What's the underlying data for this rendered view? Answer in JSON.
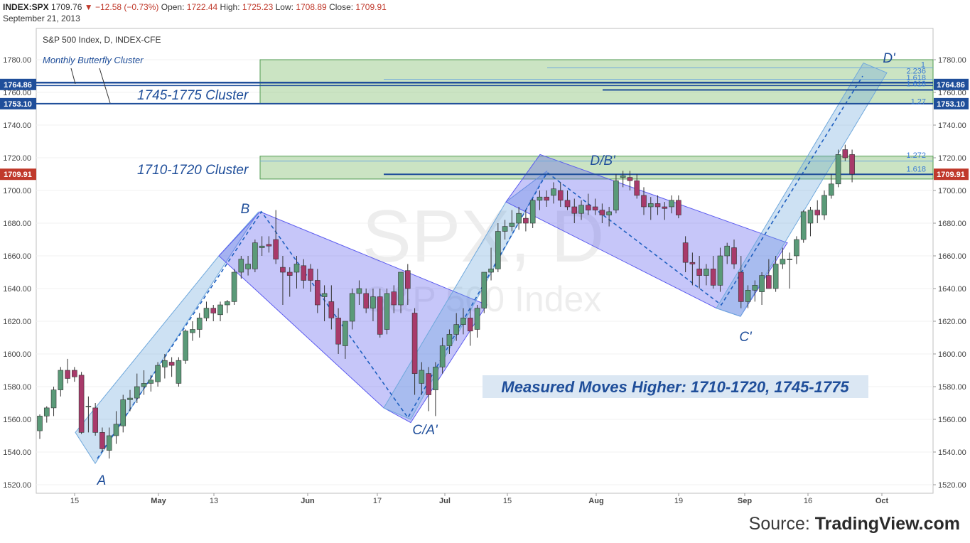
{
  "header": {
    "symbol": "INDEX:SPX",
    "last": "1709.76",
    "arrow": "▼",
    "change": "−12.58 (−0.73%)",
    "open_label": "Open:",
    "open": "1722.44",
    "high_label": "High:",
    "high": "1725.23",
    "low_label": "Low:",
    "low": "1708.89",
    "close_label": "Close:",
    "close": "1709.91",
    "date": "September 21, 2013"
  },
  "chart_title": "S&P 500 Index, D, INDEX-CFE",
  "watermark": {
    "line1": "SPX, D",
    "line2": "S&P 500 Index"
  },
  "source": {
    "prefix": "Source:",
    "name": "TradingView.com"
  },
  "colors": {
    "up": "#5a9a78",
    "down": "#c0392b",
    "down_body": "#a83a6a",
    "channel_up": "#6fa8dc",
    "channel_down": "#5b5bef",
    "cluster": "#8cc47a",
    "line": "#1f4e9a"
  },
  "chart_data": {
    "type": "candlestick",
    "title": "S&P 500 Index, D, INDEX-CFE",
    "ylim": [
      1515,
      1790
    ],
    "y_ticks": [
      "1520.00",
      "1540.00",
      "1560.00",
      "1580.00",
      "1600.00",
      "1620.00",
      "1640.00",
      "1660.00",
      "1680.00",
      "1700.00",
      "1720.00",
      "1740.00",
      "1760.00",
      "1780.00"
    ],
    "x_ticks": [
      "15",
      "May",
      "13",
      "Jun",
      "17",
      "Jul",
      "15",
      "Aug",
      "19",
      "Sep",
      "16",
      "Oct"
    ],
    "price_markers": [
      {
        "label": "1764.86",
        "value": 1764.86
      },
      {
        "label": "1753.10",
        "value": 1753.1
      },
      {
        "label": "1709.91",
        "value": 1709.91
      }
    ],
    "clusters": [
      {
        "label": "1745-1775 Cluster",
        "low": 1753,
        "high": 1780
      },
      {
        "label": "1710-1720 Cluster",
        "low": 1707,
        "high": 1721
      }
    ],
    "fib_labels": [
      {
        "label": "1",
        "value": 1775
      },
      {
        "label": "2.236",
        "value": 1771
      },
      {
        "label": "1.618",
        "value": 1767
      },
      {
        "label": "1.618",
        "value": 1764.5
      },
      {
        "label": "1.27",
        "value": 1752.5
      },
      {
        "label": "1.272",
        "value": 1719.5
      },
      {
        "label": "1.618",
        "value": 1711
      }
    ],
    "points": [
      {
        "label": "A",
        "value": 1536
      },
      {
        "label": "B",
        "value": 1687
      },
      {
        "label": "C/A'",
        "value": 1561
      },
      {
        "label": "D/B'",
        "value": 1709
      },
      {
        "label": "C'",
        "value": 1630
      },
      {
        "label": "D'",
        "value": 1772
      }
    ],
    "annotations": [
      "Monthly Butterfly Cluster",
      "Measured Moves Higher: 1710-1720, 1745-1775"
    ],
    "candles": [
      [
        1553,
        1563,
        1548,
        1562
      ],
      [
        1562,
        1568,
        1558,
        1567
      ],
      [
        1567,
        1580,
        1562,
        1578
      ],
      [
        1578,
        1592,
        1574,
        1590
      ],
      [
        1590,
        1597,
        1582,
        1585
      ],
      [
        1590,
        1592,
        1583,
        1586
      ],
      [
        1587,
        1589,
        1551,
        1552
      ],
      [
        1568,
        1574,
        1552,
        1568
      ],
      [
        1567,
        1570,
        1550,
        1552
      ],
      [
        1552,
        1555,
        1540,
        1542
      ],
      [
        1541,
        1555,
        1536,
        1550
      ],
      [
        1550,
        1565,
        1545,
        1557
      ],
      [
        1556,
        1575,
        1552,
        1572
      ],
      [
        1572,
        1578,
        1565,
        1573
      ],
      [
        1573,
        1588,
        1570,
        1580
      ],
      [
        1580,
        1590,
        1575,
        1582
      ],
      [
        1582,
        1587,
        1577,
        1584
      ],
      [
        1583,
        1595,
        1580,
        1593
      ],
      [
        1592,
        1600,
        1585,
        1596
      ],
      [
        1595,
        1598,
        1586,
        1593
      ],
      [
        1582,
        1598,
        1580,
        1596
      ],
      [
        1596,
        1615,
        1594,
        1614
      ],
      [
        1613,
        1620,
        1608,
        1615
      ],
      [
        1615,
        1625,
        1610,
        1622
      ],
      [
        1622,
        1632,
        1620,
        1628
      ],
      [
        1628,
        1630,
        1620,
        1625
      ],
      [
        1624,
        1632,
        1620,
        1630
      ],
      [
        1630,
        1633,
        1625,
        1632
      ],
      [
        1632,
        1652,
        1630,
        1650
      ],
      [
        1650,
        1660,
        1646,
        1658
      ],
      [
        1652,
        1660,
        1648,
        1655
      ],
      [
        1652,
        1670,
        1650,
        1668
      ],
      [
        1665,
        1672,
        1660,
        1666
      ],
      [
        1667,
        1672,
        1662,
        1666
      ],
      [
        1670,
        1688,
        1655,
        1658
      ],
      [
        1653,
        1660,
        1630,
        1650
      ],
      [
        1650,
        1653,
        1635,
        1648
      ],
      [
        1650,
        1660,
        1640,
        1655
      ],
      [
        1654,
        1658,
        1640,
        1645
      ],
      [
        1652,
        1655,
        1638,
        1645
      ],
      [
        1645,
        1652,
        1625,
        1630
      ],
      [
        1635,
        1642,
        1620,
        1637
      ],
      [
        1632,
        1642,
        1615,
        1622
      ],
      [
        1622,
        1628,
        1600,
        1606
      ],
      [
        1605,
        1620,
        1597,
        1620
      ],
      [
        1620,
        1640,
        1615,
        1637
      ],
      [
        1637,
        1645,
        1630,
        1640
      ],
      [
        1637,
        1640,
        1625,
        1628
      ],
      [
        1628,
        1640,
        1620,
        1635
      ],
      [
        1635,
        1640,
        1610,
        1612
      ],
      [
        1615,
        1640,
        1612,
        1637
      ],
      [
        1638,
        1642,
        1625,
        1630
      ],
      [
        1630,
        1650,
        1625,
        1650
      ],
      [
        1651,
        1655,
        1630,
        1640
      ],
      [
        1625,
        1628,
        1575,
        1588
      ],
      [
        1582,
        1595,
        1575,
        1590
      ],
      [
        1588,
        1592,
        1565,
        1575
      ],
      [
        1578,
        1595,
        1562,
        1592
      ],
      [
        1592,
        1610,
        1588,
        1605
      ],
      [
        1605,
        1615,
        1600,
        1612
      ],
      [
        1612,
        1625,
        1608,
        1618
      ],
      [
        1618,
        1628,
        1612,
        1622
      ],
      [
        1622,
        1628,
        1605,
        1614
      ],
      [
        1615,
        1630,
        1610,
        1628
      ],
      [
        1628,
        1650,
        1625,
        1650
      ],
      [
        1650,
        1665,
        1645,
        1652
      ],
      [
        1652,
        1680,
        1650,
        1675
      ],
      [
        1675,
        1682,
        1670,
        1678
      ],
      [
        1678,
        1688,
        1675,
        1680
      ],
      [
        1680,
        1690,
        1676,
        1686
      ],
      [
        1683,
        1688,
        1675,
        1680
      ],
      [
        1680,
        1695,
        1677,
        1694
      ],
      [
        1694,
        1700,
        1688,
        1696
      ],
      [
        1696,
        1700,
        1690,
        1694
      ],
      [
        1697,
        1705,
        1692,
        1701
      ],
      [
        1700,
        1705,
        1690,
        1694
      ],
      [
        1694,
        1700,
        1688,
        1690
      ],
      [
        1690,
        1695,
        1680,
        1686
      ],
      [
        1686,
        1694,
        1682,
        1691
      ],
      [
        1691,
        1698,
        1685,
        1688
      ],
      [
        1690,
        1695,
        1685,
        1688
      ],
      [
        1688,
        1692,
        1680,
        1685
      ],
      [
        1685,
        1690,
        1678,
        1687
      ],
      [
        1688,
        1710,
        1686,
        1706
      ],
      [
        1708,
        1712,
        1702,
        1709
      ],
      [
        1708,
        1712,
        1700,
        1706
      ],
      [
        1706,
        1710,
        1695,
        1697
      ],
      [
        1697,
        1702,
        1685,
        1690
      ],
      [
        1690,
        1696,
        1682,
        1692
      ],
      [
        1692,
        1697,
        1685,
        1690
      ],
      [
        1690,
        1693,
        1682,
        1689
      ],
      [
        1690,
        1697,
        1686,
        1694
      ],
      [
        1694,
        1697,
        1683,
        1685
      ],
      [
        1668,
        1672,
        1650,
        1656
      ],
      [
        1656,
        1662,
        1642,
        1655
      ],
      [
        1652,
        1660,
        1640,
        1648
      ],
      [
        1648,
        1655,
        1642,
        1652
      ],
      [
        1652,
        1660,
        1640,
        1642
      ],
      [
        1642,
        1665,
        1638,
        1660
      ],
      [
        1660,
        1668,
        1655,
        1666
      ],
      [
        1665,
        1670,
        1652,
        1655
      ],
      [
        1650,
        1660,
        1628,
        1632
      ],
      [
        1632,
        1642,
        1628,
        1639
      ],
      [
        1639,
        1645,
        1632,
        1642
      ],
      [
        1638,
        1650,
        1630,
        1648
      ],
      [
        1648,
        1658,
        1640,
        1640
      ],
      [
        1640,
        1660,
        1638,
        1655
      ],
      [
        1655,
        1665,
        1652,
        1658
      ],
      [
        1658,
        1662,
        1640,
        1658
      ],
      [
        1660,
        1672,
        1655,
        1670
      ],
      [
        1670,
        1688,
        1668,
        1687
      ],
      [
        1680,
        1690,
        1672,
        1688
      ],
      [
        1688,
        1694,
        1680,
        1685
      ],
      [
        1685,
        1700,
        1682,
        1697
      ],
      [
        1697,
        1710,
        1695,
        1704
      ],
      [
        1704,
        1725,
        1702,
        1722
      ],
      [
        1725,
        1728,
        1718,
        1720
      ],
      [
        1722,
        1725,
        1705,
        1710
      ]
    ]
  }
}
